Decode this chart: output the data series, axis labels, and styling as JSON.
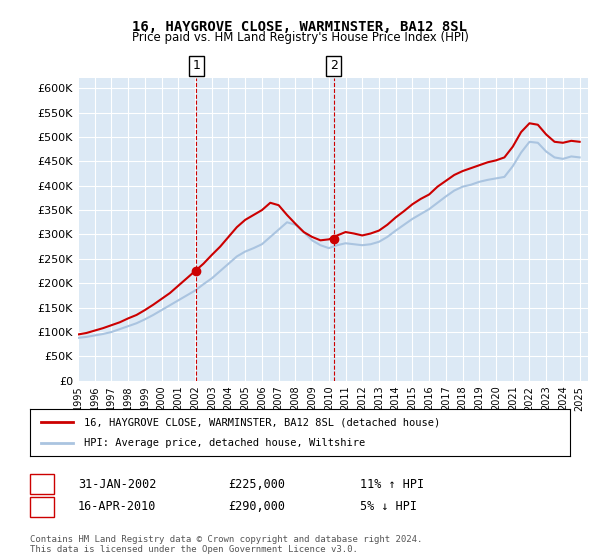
{
  "title": "16, HAYGROVE CLOSE, WARMINSTER, BA12 8SL",
  "subtitle": "Price paid vs. HM Land Registry's House Price Index (HPI)",
  "xlabel": "",
  "ylabel": "",
  "ylim": [
    0,
    620000
  ],
  "yticks": [
    0,
    50000,
    100000,
    150000,
    200000,
    250000,
    300000,
    350000,
    400000,
    450000,
    500000,
    550000,
    600000
  ],
  "ytick_labels": [
    "£0",
    "£50K",
    "£100K",
    "£150K",
    "£200K",
    "£250K",
    "£300K",
    "£350K",
    "£400K",
    "£450K",
    "£500K",
    "£550K",
    "£600K"
  ],
  "bg_color": "#dce9f5",
  "plot_bg": "#dce9f5",
  "grid_color": "#ffffff",
  "sale1_date": 2002.08,
  "sale1_price": 225000,
  "sale1_label": "1",
  "sale2_date": 2010.29,
  "sale2_price": 290000,
  "sale2_label": "2",
  "legend_line1": "16, HAYGROVE CLOSE, WARMINSTER, BA12 8SL (detached house)",
  "legend_line2": "HPI: Average price, detached house, Wiltshire",
  "table_row1": [
    "1",
    "31-JAN-2002",
    "£225,000",
    "11% ↑ HPI"
  ],
  "table_row2": [
    "2",
    "16-APR-2010",
    "£290,000",
    "5% ↓ HPI"
  ],
  "footnote": "Contains HM Land Registry data © Crown copyright and database right 2024.\nThis data is licensed under the Open Government Licence v3.0.",
  "hpi_color": "#aac4e0",
  "price_color": "#cc0000",
  "sale_marker_color": "#cc0000",
  "vline_color": "#cc0000",
  "hpi_x": [
    1995,
    1995.5,
    1996,
    1996.5,
    1997,
    1997.5,
    1998,
    1998.5,
    1999,
    1999.5,
    2000,
    2000.5,
    2001,
    2001.5,
    2002,
    2002.5,
    2003,
    2003.5,
    2004,
    2004.5,
    2005,
    2005.5,
    2006,
    2006.5,
    2007,
    2007.5,
    2008,
    2008.5,
    2009,
    2009.5,
    2010,
    2010.5,
    2011,
    2011.5,
    2012,
    2012.5,
    2013,
    2013.5,
    2014,
    2014.5,
    2015,
    2015.5,
    2016,
    2016.5,
    2017,
    2017.5,
    2018,
    2018.5,
    2019,
    2019.5,
    2020,
    2020.5,
    2021,
    2021.5,
    2022,
    2022.5,
    2023,
    2023.5,
    2024,
    2024.5,
    2025
  ],
  "hpi_y": [
    88000,
    90000,
    93000,
    96000,
    100000,
    106000,
    112000,
    118000,
    126000,
    135000,
    145000,
    155000,
    165000,
    175000,
    185000,
    198000,
    210000,
    225000,
    240000,
    255000,
    265000,
    272000,
    280000,
    295000,
    310000,
    325000,
    320000,
    305000,
    288000,
    278000,
    272000,
    278000,
    282000,
    280000,
    278000,
    280000,
    285000,
    295000,
    308000,
    320000,
    332000,
    342000,
    352000,
    365000,
    378000,
    390000,
    398000,
    402000,
    408000,
    412000,
    415000,
    418000,
    440000,
    468000,
    490000,
    488000,
    470000,
    458000,
    455000,
    460000,
    458000
  ],
  "price_x": [
    1995,
    1995.5,
    1996,
    1996.5,
    1997,
    1997.5,
    1998,
    1998.5,
    1999,
    1999.5,
    2000,
    2000.5,
    2001,
    2001.5,
    2002,
    2002.5,
    2003,
    2003.5,
    2004,
    2004.5,
    2005,
    2005.5,
    2006,
    2006.5,
    2007,
    2007.5,
    2008,
    2008.5,
    2009,
    2009.5,
    2010,
    2010.5,
    2011,
    2011.5,
    2012,
    2012.5,
    2013,
    2013.5,
    2014,
    2014.5,
    2015,
    2015.5,
    2016,
    2016.5,
    2017,
    2017.5,
    2018,
    2018.5,
    2019,
    2019.5,
    2020,
    2020.5,
    2021,
    2021.5,
    2022,
    2022.5,
    2023,
    2023.5,
    2024,
    2024.5,
    2025
  ],
  "price_y": [
    95000,
    98000,
    103000,
    108000,
    114000,
    120000,
    128000,
    135000,
    145000,
    156000,
    168000,
    180000,
    195000,
    210000,
    225000,
    240000,
    258000,
    275000,
    295000,
    315000,
    330000,
    340000,
    350000,
    365000,
    360000,
    340000,
    322000,
    305000,
    295000,
    288000,
    290000,
    298000,
    305000,
    302000,
    298000,
    302000,
    308000,
    320000,
    335000,
    348000,
    362000,
    373000,
    382000,
    398000,
    410000,
    422000,
    430000,
    436000,
    442000,
    448000,
    452000,
    458000,
    480000,
    510000,
    528000,
    525000,
    505000,
    490000,
    488000,
    492000,
    490000
  ],
  "xtick_years": [
    1995,
    1996,
    1997,
    1998,
    1999,
    2000,
    2001,
    2002,
    2003,
    2004,
    2005,
    2006,
    2007,
    2008,
    2009,
    2010,
    2011,
    2012,
    2013,
    2014,
    2015,
    2016,
    2017,
    2018,
    2019,
    2020,
    2021,
    2022,
    2023,
    2024,
    2025
  ]
}
